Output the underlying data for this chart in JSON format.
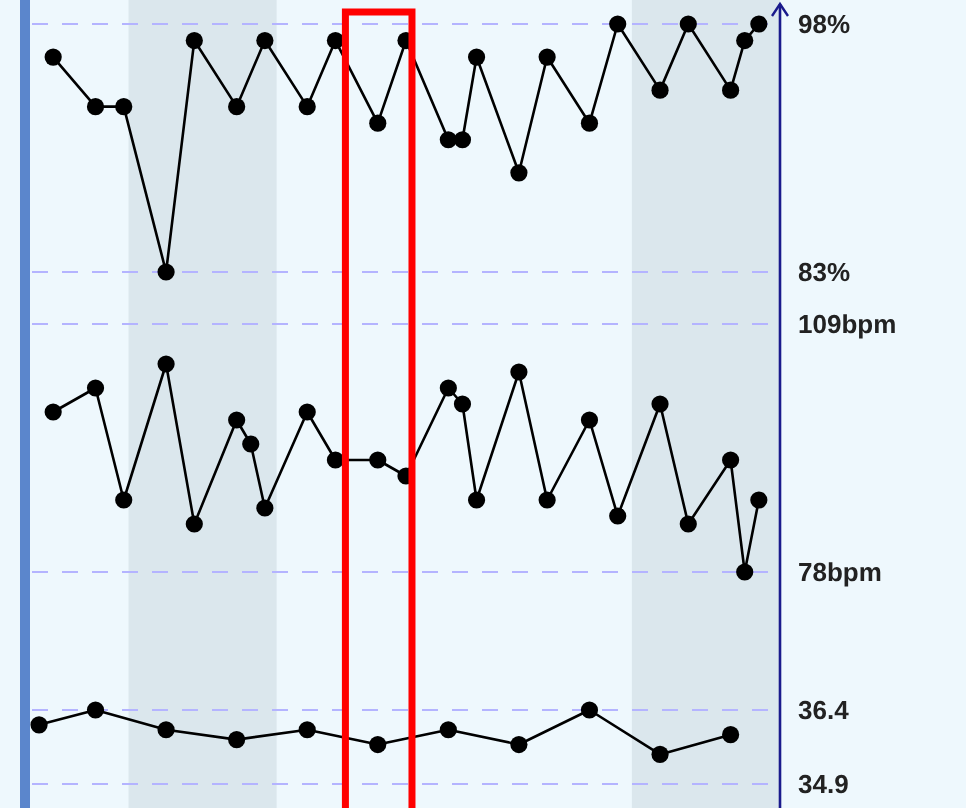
{
  "chart_data": [
    {
      "type": "line",
      "categories": [
        null,
        null,
        null,
        null,
        null,
        null,
        null,
        null,
        null,
        null,
        null,
        null,
        null,
        null,
        null,
        null,
        null,
        null,
        null,
        null,
        null,
        null,
        null,
        null,
        null,
        null,
        null,
        null,
        null,
        null,
        null,
        null,
        null,
        null,
        null,
        null,
        null,
        null,
        null,
        null,
        null,
        null,
        null,
        null,
        null,
        null,
        null,
        null,
        null,
        null,
        null,
        null,
        null
      ],
      "ylim": [
        83,
        98
      ],
      "yticks": [
        {
          "value": 98,
          "label": "98%"
        },
        {
          "value": 83,
          "label": "83%"
        }
      ],
      "tick_labels": "y",
      "grid": "y",
      "marker": "circle",
      "line_style": "solid",
      "series": [
        {
          "color": "#000000",
          "values": [
            null,
            96,
            null,
            null,
            93,
            null,
            93,
            null,
            null,
            83,
            null,
            97,
            null,
            null,
            93,
            null,
            97,
            null,
            null,
            93,
            null,
            97,
            null,
            null,
            92,
            null,
            97,
            null,
            null,
            91,
            91,
            96,
            null,
            null,
            89,
            null,
            96,
            null,
            null,
            92,
            null,
            98,
            null,
            null,
            94,
            null,
            98,
            null,
            null,
            94,
            97,
            98,
            null
          ]
        }
      ]
    },
    {
      "type": "line",
      "categories": [
        null,
        null,
        null,
        null,
        null,
        null,
        null,
        null,
        null,
        null,
        null,
        null,
        null,
        null,
        null,
        null,
        null,
        null,
        null,
        null,
        null,
        null,
        null,
        null,
        null,
        null,
        null,
        null,
        null,
        null,
        null,
        null,
        null,
        null,
        null,
        null,
        null,
        null,
        null,
        null,
        null,
        null,
        null,
        null,
        null,
        null,
        null,
        null,
        null,
        null,
        null,
        null,
        null
      ],
      "ylim": [
        78,
        109
      ],
      "yticks": [
        {
          "value": 109,
          "label": "109bpm"
        },
        {
          "value": 78,
          "label": "78bpm"
        }
      ],
      "tick_labels": "y",
      "grid": "y",
      "marker": "circle",
      "line_style": "solid",
      "series": [
        {
          "color": "#000000",
          "values": [
            null,
            98,
            null,
            null,
            101,
            null,
            87,
            null,
            null,
            104,
            null,
            84,
            null,
            null,
            97,
            94,
            86,
            null,
            null,
            98,
            null,
            92,
            null,
            null,
            92,
            null,
            90,
            null,
            null,
            101,
            99,
            87,
            null,
            null,
            103,
            null,
            87,
            null,
            null,
            97,
            null,
            85,
            null,
            null,
            99,
            null,
            84,
            null,
            null,
            92,
            78,
            87,
            null
          ]
        }
      ]
    },
    {
      "type": "line",
      "categories": [
        null,
        null,
        null,
        null,
        null,
        null,
        null,
        null,
        null,
        null,
        null,
        null,
        null,
        null,
        null,
        null,
        null,
        null,
        null,
        null,
        null,
        null,
        null,
        null,
        null,
        null,
        null,
        null,
        null,
        null,
        null,
        null,
        null,
        null,
        null,
        null,
        null,
        null,
        null,
        null,
        null,
        null,
        null,
        null,
        null,
        null,
        null,
        null,
        null,
        null,
        null,
        null,
        null
      ],
      "ylim": [
        34.9,
        36.4
      ],
      "yticks": [
        36.4,
        34.9
      ],
      "tick_labels": "y",
      "grid": "y",
      "marker": "circle",
      "line_style": "solid",
      "series": [
        {
          "color": "#000000",
          "values": [
            36.1,
            null,
            null,
            null,
            36.4,
            null,
            null,
            null,
            null,
            36.0,
            null,
            null,
            null,
            null,
            35.8,
            null,
            null,
            null,
            null,
            36.0,
            null,
            null,
            null,
            null,
            35.7,
            null,
            null,
            null,
            null,
            36.0,
            null,
            null,
            null,
            null,
            35.7,
            null,
            null,
            null,
            null,
            36.4,
            null,
            null,
            null,
            null,
            35.5,
            null,
            null,
            null,
            null,
            35.9,
            null,
            null,
            null
          ]
        }
      ]
    }
  ]
}
